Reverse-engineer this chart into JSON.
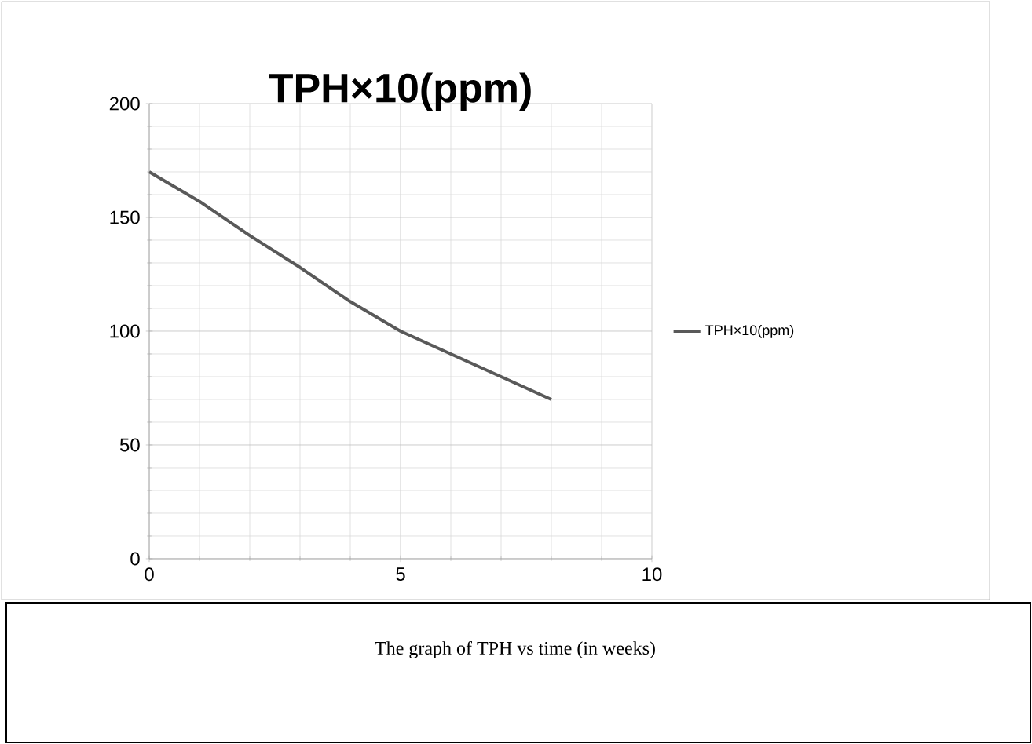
{
  "chart_data": {
    "type": "line",
    "title": "TPH×10(ppm)",
    "x": [
      0,
      1,
      2,
      3,
      4,
      5,
      6,
      7,
      8
    ],
    "series": [
      {
        "name": "TPH×10(ppm)",
        "color": "#595959",
        "values": [
          170,
          157,
          142,
          128,
          113,
          100,
          90,
          80,
          70
        ]
      }
    ],
    "xlim": [
      0,
      10
    ],
    "xticks": [
      0,
      5,
      10
    ],
    "ylim": [
      0,
      200
    ],
    "yticks": [
      0,
      50,
      100,
      150,
      200
    ],
    "grid": true,
    "legend": "right",
    "line_style": "solid",
    "marker": "none",
    "annotations": [
      "The graph of TPH vs time (in weeks)"
    ]
  }
}
